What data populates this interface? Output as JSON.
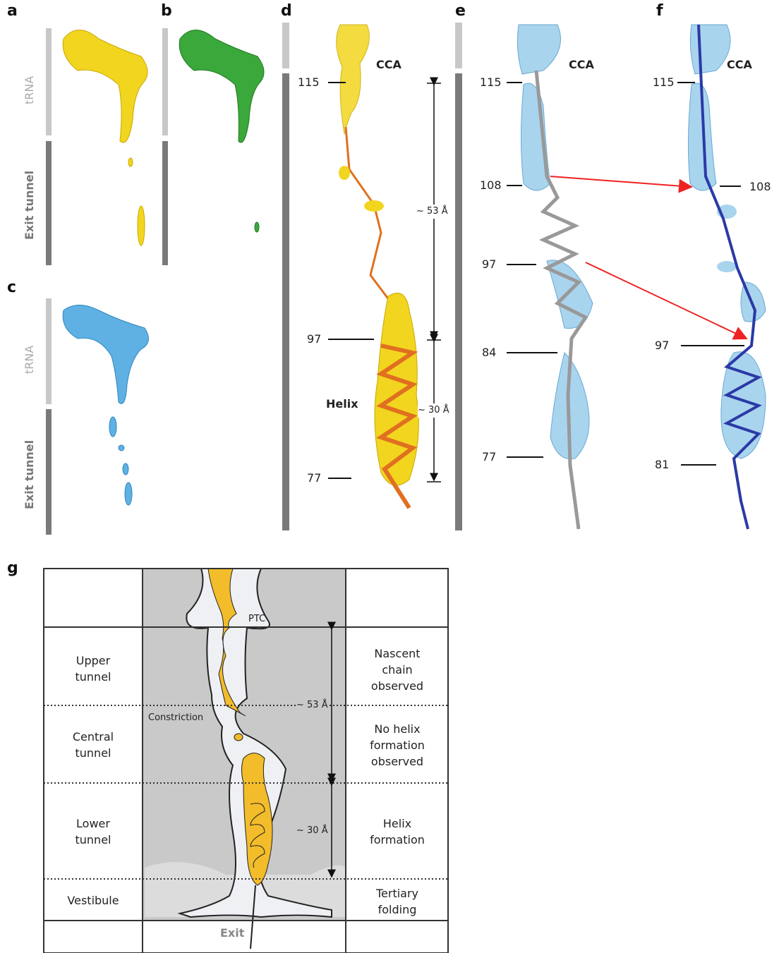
{
  "panels": {
    "a": {
      "label": "a",
      "top_bar": "tRNA",
      "bottom_bar": "Exit tunnel"
    },
    "b": {
      "label": "b"
    },
    "c": {
      "label": "c",
      "top_bar": "tRNA",
      "bottom_bar": "Exit tunnel"
    },
    "d": {
      "label": "d",
      "end": "CCA",
      "residues": [
        "115",
        "97",
        "77"
      ],
      "helix": "Helix",
      "distances": [
        "~ 53 Å",
        "~ 30 Å"
      ]
    },
    "e": {
      "label": "e",
      "end": "CCA",
      "residues": [
        "115",
        "108",
        "97",
        "84",
        "77"
      ]
    },
    "f": {
      "label": "f",
      "end": "CCA",
      "residues": [
        "115",
        "108",
        "97",
        "81"
      ]
    },
    "g": {
      "label": "g",
      "regions": [
        "Upper tunnel",
        "Central tunnel",
        "Lower tunnel",
        "Vestibule"
      ],
      "observations": [
        "Nascent chain observed",
        "No helix formation observed",
        "Helix formation",
        "Tertiary folding"
      ],
      "ptc": "PTC",
      "constriction": "Constriction",
      "distances": [
        "~ 53 Å",
        "~ 30 Å"
      ],
      "exit": "Exit"
    }
  }
}
